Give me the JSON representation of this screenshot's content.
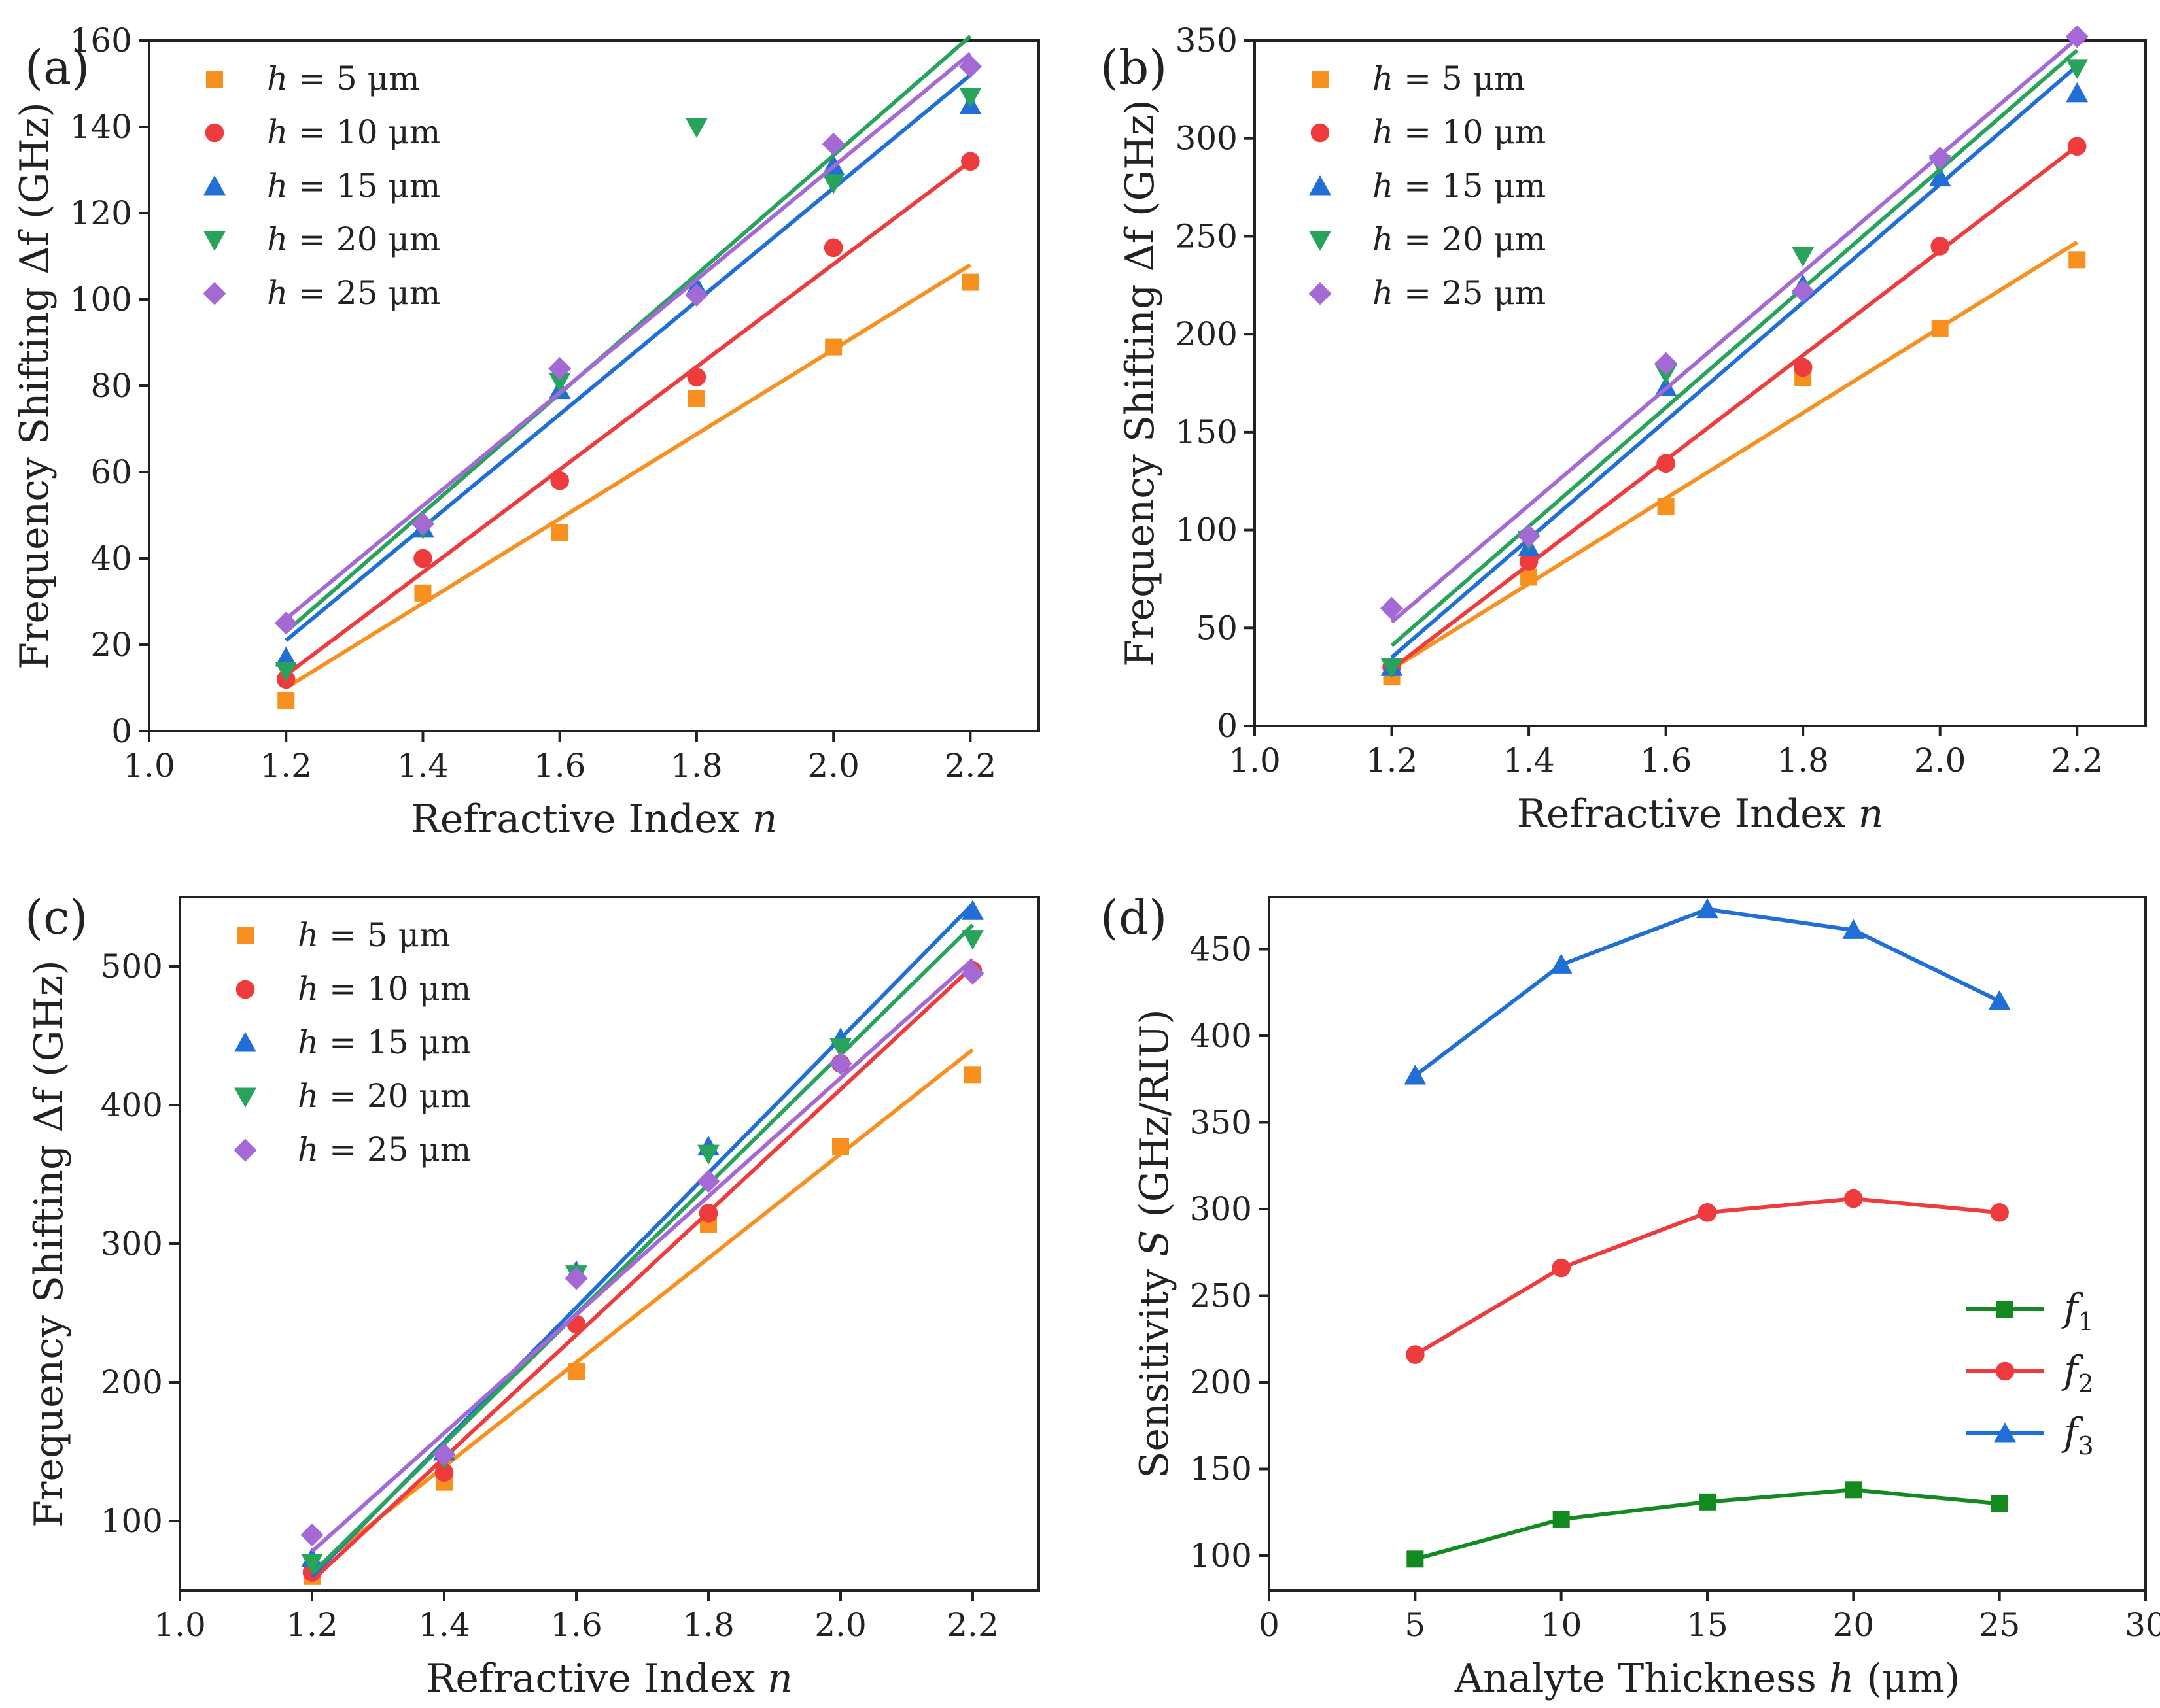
{
  "colors": {
    "h5": "#f7901e",
    "h10": "#ee3b3e",
    "h15": "#1f6fd6",
    "h20": "#27a35b",
    "h25": "#a569d6",
    "f1": "#138a1f",
    "f2": "#ee3b3e",
    "f3": "#1f6fd6"
  },
  "chart_data": [
    {
      "panel": "a",
      "panel_label": "(a)",
      "type": "scatter",
      "xlabel": "Refractive Index n",
      "ylabel": "Frequency Shifting Δf (GHz)",
      "xlim": [
        1.0,
        2.3
      ],
      "ylim": [
        0,
        160
      ],
      "xticks": [
        1.0,
        1.2,
        1.4,
        1.6,
        1.8,
        2.0,
        2.2
      ],
      "yticks": [
        0,
        20,
        40,
        60,
        80,
        100,
        120,
        140,
        160
      ],
      "x": [
        1.2,
        1.4,
        1.6,
        1.8,
        2.0,
        2.2
      ],
      "legend_position": "top-left",
      "series": [
        {
          "name": "h = 5 μm",
          "color_key": "h5",
          "marker": "square",
          "values": [
            7,
            32,
            46,
            77,
            89,
            104
          ],
          "fit": [
            10,
            108
          ]
        },
        {
          "name": "h = 10 μm",
          "color_key": "h10",
          "marker": "circle",
          "values": [
            12,
            40,
            58,
            82,
            112,
            132
          ],
          "fit": [
            13,
            132
          ]
        },
        {
          "name": "h = 15 μm",
          "color_key": "h15",
          "marker": "triangle-up",
          "values": [
            17,
            47,
            79,
            103,
            131,
            145
          ],
          "fit": [
            21,
            152
          ]
        },
        {
          "name": "h = 20 μm",
          "color_key": "h20",
          "marker": "triangle-down",
          "values": [
            14,
            47,
            81,
            140,
            127,
            147
          ],
          "fit": [
            23,
            161
          ]
        },
        {
          "name": "h = 25 μm",
          "color_key": "h25",
          "marker": "diamond",
          "values": [
            25,
            48,
            84,
            101,
            136,
            154
          ],
          "fit": [
            26,
            157
          ]
        }
      ]
    },
    {
      "panel": "b",
      "panel_label": "(b)",
      "type": "scatter",
      "xlabel": "Refractive Index n",
      "ylabel": "Frequency Shifting Δf (GHz)",
      "xlim": [
        1.0,
        2.3
      ],
      "ylim": [
        0,
        350
      ],
      "xticks": [
        1.0,
        1.2,
        1.4,
        1.6,
        1.8,
        2.0,
        2.2
      ],
      "yticks": [
        0,
        50,
        100,
        150,
        200,
        250,
        300,
        350
      ],
      "x": [
        1.2,
        1.4,
        1.6,
        1.8,
        2.0,
        2.2
      ],
      "legend_position": "top-left",
      "series": [
        {
          "name": "h = 5 μm",
          "color_key": "h5",
          "marker": "square",
          "values": [
            25,
            76,
            112,
            178,
            203,
            238
          ],
          "fit": [
            29,
            247
          ]
        },
        {
          "name": "h = 10 μm",
          "color_key": "h10",
          "marker": "circle",
          "values": [
            30,
            84,
            134,
            183,
            245,
            296
          ],
          "fit": [
            29,
            296
          ]
        },
        {
          "name": "h = 15 μm",
          "color_key": "h15",
          "marker": "triangle-up",
          "values": [
            30,
            91,
            173,
            225,
            280,
            323
          ],
          "fit": [
            35,
            337
          ]
        },
        {
          "name": "h = 20 μm",
          "color_key": "h20",
          "marker": "triangle-down",
          "values": [
            30,
            95,
            180,
            240,
            287,
            336
          ],
          "fit": [
            41,
            345
          ]
        },
        {
          "name": "h = 25 μm",
          "color_key": "h25",
          "marker": "diamond",
          "values": [
            60,
            97,
            185,
            222,
            290,
            352
          ],
          "fit": [
            53,
            351
          ]
        }
      ]
    },
    {
      "panel": "c",
      "panel_label": "(c)",
      "type": "scatter",
      "xlabel": "Refractive Index n",
      "ylabel": "Frequency Shifting Δf (GHz)",
      "xlim": [
        1.0,
        2.3
      ],
      "ylim": [
        50,
        550
      ],
      "xticks": [
        1.0,
        1.2,
        1.4,
        1.6,
        1.8,
        2.0,
        2.2
      ],
      "yticks": [
        100,
        200,
        300,
        400,
        500
      ],
      "x": [
        1.2,
        1.4,
        1.6,
        1.8,
        2.0,
        2.2
      ],
      "legend_position": "top-left",
      "series": [
        {
          "name": "h = 5 μm",
          "color_key": "h5",
          "marker": "square",
          "values": [
            60,
            128,
            208,
            314,
            370,
            422
          ],
          "fit": [
            64,
            440
          ]
        },
        {
          "name": "h = 10 μm",
          "color_key": "h10",
          "marker": "circle",
          "values": [
            63,
            135,
            242,
            322,
            430,
            497
          ],
          "fit": [
            57,
            500
          ]
        },
        {
          "name": "h = 15 μm",
          "color_key": "h15",
          "marker": "triangle-up",
          "values": [
            73,
            150,
            280,
            370,
            448,
            540
          ],
          "fit": [
            60,
            545
          ]
        },
        {
          "name": "h = 20 μm",
          "color_key": "h20",
          "marker": "triangle-down",
          "values": [
            70,
            145,
            278,
            365,
            442,
            520
          ],
          "fit": [
            62,
            530
          ]
        },
        {
          "name": "h = 25 μm",
          "color_key": "h25",
          "marker": "diamond",
          "values": [
            90,
            148,
            275,
            345,
            430,
            495
          ],
          "fit": [
            78,
            505
          ]
        }
      ]
    },
    {
      "panel": "d",
      "panel_label": "(d)",
      "type": "line",
      "xlabel": "Analyte Thickness h (μm)",
      "ylabel": "Sensitivity S (GHz/RIU)",
      "xlim": [
        0,
        30
      ],
      "ylim": [
        80,
        480
      ],
      "xticks": [
        0,
        5,
        10,
        15,
        20,
        25,
        30
      ],
      "yticks": [
        100,
        150,
        200,
        250,
        300,
        350,
        400,
        450
      ],
      "x": [
        5,
        10,
        15,
        20,
        25
      ],
      "legend_position": "bottom-right",
      "series": [
        {
          "name": "f",
          "sub": "1",
          "color_key": "f1",
          "marker": "square",
          "values": [
            98,
            121,
            131,
            138,
            130
          ]
        },
        {
          "name": "f",
          "sub": "2",
          "color_key": "f2",
          "marker": "circle",
          "values": [
            216,
            266,
            298,
            306,
            298
          ]
        },
        {
          "name": "f",
          "sub": "3",
          "color_key": "f3",
          "marker": "triangle-up",
          "values": [
            377,
            441,
            473,
            461,
            420
          ]
        }
      ]
    }
  ]
}
